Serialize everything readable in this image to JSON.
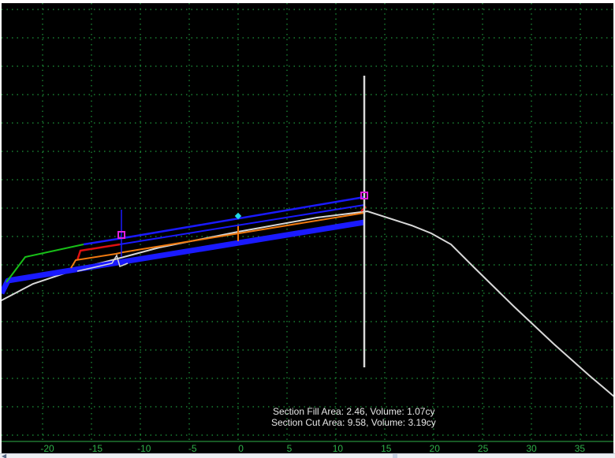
{
  "info": {
    "fill_line": "Section Fill Area: 2.46, Volume: 1.07cy",
    "cut_line": "Section Cut Area: 9.58, Volume: 3.19cy"
  },
  "axis": {
    "x_ticks": [
      "-20",
      "-15",
      "-10",
      "-5",
      "0",
      "5",
      "10",
      "15",
      "20",
      "25",
      "30",
      "35"
    ]
  },
  "colors": {
    "background": "#000000",
    "grid_dot": "#1f9a3c",
    "tick_label": "#2fb14a",
    "ground": "#d8d8d8",
    "design_blue": "#1a1aff",
    "pavement_red": "#e01010",
    "subbase_orange": "#f07a10",
    "slope_green": "#18c018",
    "handle_magenta": "#e020e0",
    "point_cyan": "#20d8e8"
  }
}
